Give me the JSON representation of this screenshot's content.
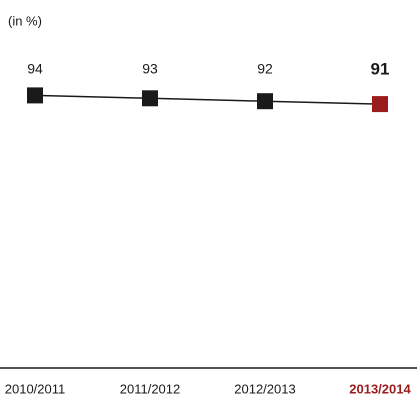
{
  "chart_data": {
    "type": "line",
    "unit_label": "(in %)",
    "categories": [
      "2010/2011",
      "2011/2012",
      "2012/2013",
      "2013/2014"
    ],
    "series": [
      {
        "name": null,
        "color": "#1a1a1a",
        "values": [
          94,
          93,
          92,
          91
        ]
      }
    ],
    "point_colors": [
      "#1a1a1a",
      "#1a1a1a",
      "#1a1a1a",
      "#9b1c1c"
    ],
    "ylim": [
      0,
      100
    ]
  }
}
